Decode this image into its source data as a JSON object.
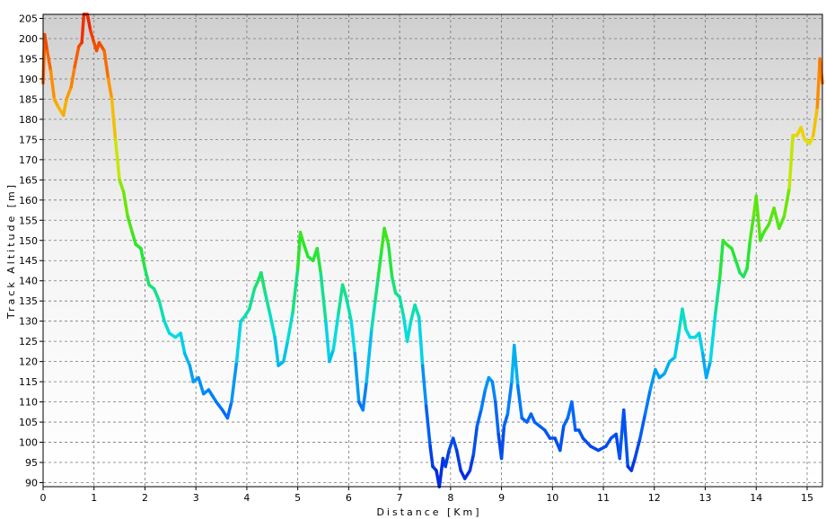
{
  "chart_data": {
    "type": "line",
    "xlabel": "Distance [Km]",
    "ylabel": "Track Altitude [m]",
    "xlim": [
      0,
      15.3
    ],
    "ylim": [
      89,
      206
    ],
    "x_ticks": [
      "0",
      "1",
      "2",
      "3",
      "4",
      "5",
      "6",
      "7",
      "8",
      "9",
      "10",
      "11",
      "12",
      "13",
      "14",
      "15"
    ],
    "y_ticks": [
      "90",
      "95",
      "100",
      "105",
      "110",
      "115",
      "120",
      "125",
      "130",
      "135",
      "140",
      "145",
      "150",
      "155",
      "160",
      "165",
      "170",
      "175",
      "180",
      "185",
      "190",
      "195",
      "200",
      "205"
    ],
    "grid": true,
    "color_scale": {
      "low": "#0022dd",
      "high": "#ee2200",
      "colormap": "jet"
    },
    "series": [
      {
        "points": [
          [
            0.0,
            189
          ],
          [
            0.03,
            201
          ],
          [
            0.08,
            197
          ],
          [
            0.15,
            192
          ],
          [
            0.22,
            185
          ],
          [
            0.3,
            183
          ],
          [
            0.4,
            181
          ],
          [
            0.46,
            185
          ],
          [
            0.55,
            188
          ],
          [
            0.62,
            193
          ],
          [
            0.7,
            198
          ],
          [
            0.76,
            199
          ],
          [
            0.8,
            206
          ],
          [
            0.87,
            206
          ],
          [
            0.93,
            202
          ],
          [
            1.0,
            199
          ],
          [
            1.05,
            197
          ],
          [
            1.1,
            199
          ],
          [
            1.2,
            197
          ],
          [
            1.28,
            190
          ],
          [
            1.35,
            185
          ],
          [
            1.42,
            175
          ],
          [
            1.5,
            165
          ],
          [
            1.58,
            162
          ],
          [
            1.66,
            156
          ],
          [
            1.75,
            152
          ],
          [
            1.82,
            149
          ],
          [
            1.92,
            148
          ],
          [
            2.0,
            143
          ],
          [
            2.08,
            139
          ],
          [
            2.18,
            138
          ],
          [
            2.28,
            135
          ],
          [
            2.38,
            130
          ],
          [
            2.48,
            127
          ],
          [
            2.6,
            126
          ],
          [
            2.7,
            127
          ],
          [
            2.78,
            122
          ],
          [
            2.88,
            119
          ],
          [
            2.95,
            115
          ],
          [
            3.05,
            116
          ],
          [
            3.15,
            112
          ],
          [
            3.25,
            113
          ],
          [
            3.4,
            110
          ],
          [
            3.52,
            108
          ],
          [
            3.62,
            106
          ],
          [
            3.7,
            110
          ],
          [
            3.8,
            120
          ],
          [
            3.88,
            130
          ],
          [
            3.95,
            131
          ],
          [
            4.05,
            133
          ],
          [
            4.15,
            138
          ],
          [
            4.22,
            140
          ],
          [
            4.28,
            142
          ],
          [
            4.36,
            137
          ],
          [
            4.45,
            132
          ],
          [
            4.55,
            126
          ],
          [
            4.62,
            119
          ],
          [
            4.72,
            120
          ],
          [
            4.8,
            125
          ],
          [
            4.9,
            132
          ],
          [
            5.0,
            143
          ],
          [
            5.05,
            152
          ],
          [
            5.12,
            149
          ],
          [
            5.2,
            146
          ],
          [
            5.3,
            145
          ],
          [
            5.38,
            148
          ],
          [
            5.45,
            142
          ],
          [
            5.55,
            130
          ],
          [
            5.62,
            120
          ],
          [
            5.7,
            123
          ],
          [
            5.8,
            132
          ],
          [
            5.88,
            139
          ],
          [
            5.95,
            136
          ],
          [
            6.05,
            130
          ],
          [
            6.12,
            122
          ],
          [
            6.2,
            110
          ],
          [
            6.28,
            108
          ],
          [
            6.35,
            115
          ],
          [
            6.45,
            128
          ],
          [
            6.52,
            135
          ],
          [
            6.58,
            141
          ],
          [
            6.65,
            148
          ],
          [
            6.7,
            153
          ],
          [
            6.78,
            149
          ],
          [
            6.85,
            141
          ],
          [
            6.92,
            137
          ],
          [
            7.0,
            136
          ],
          [
            7.08,
            131
          ],
          [
            7.15,
            125
          ],
          [
            7.22,
            130
          ],
          [
            7.3,
            134
          ],
          [
            7.38,
            131
          ],
          [
            7.45,
            119
          ],
          [
            7.52,
            109
          ],
          [
            7.6,
            99
          ],
          [
            7.65,
            94
          ],
          [
            7.72,
            93
          ],
          [
            7.78,
            89
          ],
          [
            7.85,
            96
          ],
          [
            7.9,
            94
          ],
          [
            7.97,
            98
          ],
          [
            8.05,
            101
          ],
          [
            8.12,
            98
          ],
          [
            8.2,
            93
          ],
          [
            8.28,
            91
          ],
          [
            8.38,
            93
          ],
          [
            8.45,
            97
          ],
          [
            8.52,
            104
          ],
          [
            8.6,
            108
          ],
          [
            8.68,
            113
          ],
          [
            8.75,
            116
          ],
          [
            8.82,
            115
          ],
          [
            8.88,
            110
          ],
          [
            8.94,
            102
          ],
          [
            9.0,
            96
          ],
          [
            9.05,
            104
          ],
          [
            9.12,
            107
          ],
          [
            9.2,
            115
          ],
          [
            9.25,
            124
          ],
          [
            9.32,
            114
          ],
          [
            9.4,
            106
          ],
          [
            9.5,
            105
          ],
          [
            9.58,
            107
          ],
          [
            9.65,
            105
          ],
          [
            9.75,
            104
          ],
          [
            9.85,
            103
          ],
          [
            9.95,
            101
          ],
          [
            10.05,
            101
          ],
          [
            10.15,
            98
          ],
          [
            10.22,
            104
          ],
          [
            10.3,
            106
          ],
          [
            10.38,
            110
          ],
          [
            10.45,
            103
          ],
          [
            10.52,
            103
          ],
          [
            10.6,
            101
          ],
          [
            10.75,
            99
          ],
          [
            10.9,
            98
          ],
          [
            11.05,
            99
          ],
          [
            11.15,
            101
          ],
          [
            11.25,
            102
          ],
          [
            11.32,
            96
          ],
          [
            11.4,
            108
          ],
          [
            11.48,
            94
          ],
          [
            11.55,
            93
          ],
          [
            11.62,
            96
          ],
          [
            11.72,
            101
          ],
          [
            11.82,
            107
          ],
          [
            11.92,
            113
          ],
          [
            12.02,
            118
          ],
          [
            12.1,
            116
          ],
          [
            12.2,
            117
          ],
          [
            12.3,
            120
          ],
          [
            12.4,
            121
          ],
          [
            12.48,
            127
          ],
          [
            12.55,
            133
          ],
          [
            12.62,
            128
          ],
          [
            12.7,
            126
          ],
          [
            12.8,
            126
          ],
          [
            12.88,
            127
          ],
          [
            12.95,
            122
          ],
          [
            13.02,
            116
          ],
          [
            13.1,
            120
          ],
          [
            13.2,
            132
          ],
          [
            13.28,
            140
          ],
          [
            13.35,
            150
          ],
          [
            13.42,
            149
          ],
          [
            13.52,
            148
          ],
          [
            13.6,
            145
          ],
          [
            13.68,
            142
          ],
          [
            13.75,
            141
          ],
          [
            13.82,
            143
          ],
          [
            13.88,
            150
          ],
          [
            13.95,
            156
          ],
          [
            14.0,
            161
          ],
          [
            14.08,
            150
          ],
          [
            14.15,
            152
          ],
          [
            14.25,
            154
          ],
          [
            14.35,
            158
          ],
          [
            14.45,
            153
          ],
          [
            14.55,
            156
          ],
          [
            14.65,
            163
          ],
          [
            14.72,
            176
          ],
          [
            14.8,
            176
          ],
          [
            14.88,
            178
          ],
          [
            14.95,
            175
          ],
          [
            15.05,
            174
          ],
          [
            15.12,
            176
          ],
          [
            15.2,
            183
          ],
          [
            15.25,
            195
          ],
          [
            15.3,
            189
          ]
        ]
      }
    ]
  }
}
